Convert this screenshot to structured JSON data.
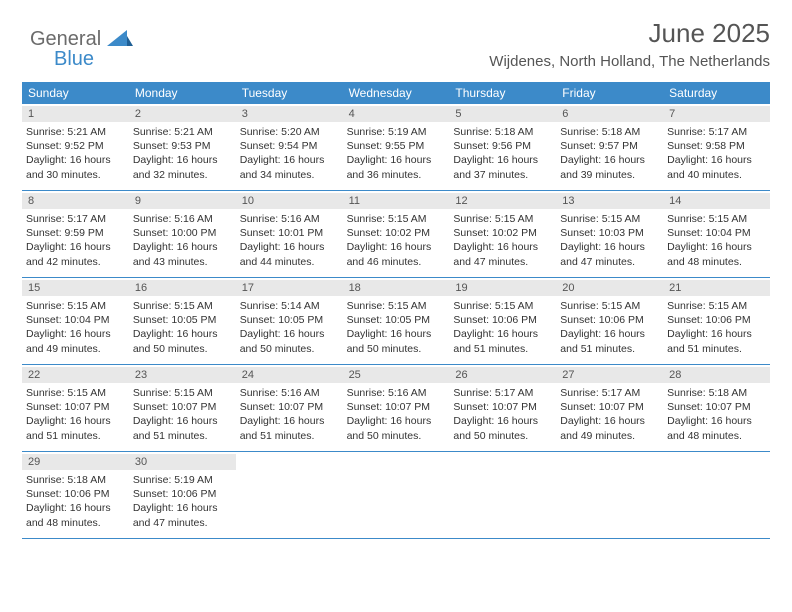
{
  "brand": {
    "general": "General",
    "blue": "Blue"
  },
  "header": {
    "title": "June 2025",
    "location": "Wijdenes, North Holland, The Netherlands"
  },
  "colors": {
    "accent": "#3c8ac9",
    "band": "#e8e8e8",
    "text": "#333333",
    "muted": "#555555",
    "white": "#ffffff"
  },
  "dayNames": [
    "Sunday",
    "Monday",
    "Tuesday",
    "Wednesday",
    "Thursday",
    "Friday",
    "Saturday"
  ],
  "weeks": [
    [
      {
        "n": "1",
        "sr": "5:21 AM",
        "ss": "9:52 PM",
        "dl": "16 hours and 30 minutes."
      },
      {
        "n": "2",
        "sr": "5:21 AM",
        "ss": "9:53 PM",
        "dl": "16 hours and 32 minutes."
      },
      {
        "n": "3",
        "sr": "5:20 AM",
        "ss": "9:54 PM",
        "dl": "16 hours and 34 minutes."
      },
      {
        "n": "4",
        "sr": "5:19 AM",
        "ss": "9:55 PM",
        "dl": "16 hours and 36 minutes."
      },
      {
        "n": "5",
        "sr": "5:18 AM",
        "ss": "9:56 PM",
        "dl": "16 hours and 37 minutes."
      },
      {
        "n": "6",
        "sr": "5:18 AM",
        "ss": "9:57 PM",
        "dl": "16 hours and 39 minutes."
      },
      {
        "n": "7",
        "sr": "5:17 AM",
        "ss": "9:58 PM",
        "dl": "16 hours and 40 minutes."
      }
    ],
    [
      {
        "n": "8",
        "sr": "5:17 AM",
        "ss": "9:59 PM",
        "dl": "16 hours and 42 minutes."
      },
      {
        "n": "9",
        "sr": "5:16 AM",
        "ss": "10:00 PM",
        "dl": "16 hours and 43 minutes."
      },
      {
        "n": "10",
        "sr": "5:16 AM",
        "ss": "10:01 PM",
        "dl": "16 hours and 44 minutes."
      },
      {
        "n": "11",
        "sr": "5:15 AM",
        "ss": "10:02 PM",
        "dl": "16 hours and 46 minutes."
      },
      {
        "n": "12",
        "sr": "5:15 AM",
        "ss": "10:02 PM",
        "dl": "16 hours and 47 minutes."
      },
      {
        "n": "13",
        "sr": "5:15 AM",
        "ss": "10:03 PM",
        "dl": "16 hours and 47 minutes."
      },
      {
        "n": "14",
        "sr": "5:15 AM",
        "ss": "10:04 PM",
        "dl": "16 hours and 48 minutes."
      }
    ],
    [
      {
        "n": "15",
        "sr": "5:15 AM",
        "ss": "10:04 PM",
        "dl": "16 hours and 49 minutes."
      },
      {
        "n": "16",
        "sr": "5:15 AM",
        "ss": "10:05 PM",
        "dl": "16 hours and 50 minutes."
      },
      {
        "n": "17",
        "sr": "5:14 AM",
        "ss": "10:05 PM",
        "dl": "16 hours and 50 minutes."
      },
      {
        "n": "18",
        "sr": "5:15 AM",
        "ss": "10:05 PM",
        "dl": "16 hours and 50 minutes."
      },
      {
        "n": "19",
        "sr": "5:15 AM",
        "ss": "10:06 PM",
        "dl": "16 hours and 51 minutes."
      },
      {
        "n": "20",
        "sr": "5:15 AM",
        "ss": "10:06 PM",
        "dl": "16 hours and 51 minutes."
      },
      {
        "n": "21",
        "sr": "5:15 AM",
        "ss": "10:06 PM",
        "dl": "16 hours and 51 minutes."
      }
    ],
    [
      {
        "n": "22",
        "sr": "5:15 AM",
        "ss": "10:07 PM",
        "dl": "16 hours and 51 minutes."
      },
      {
        "n": "23",
        "sr": "5:15 AM",
        "ss": "10:07 PM",
        "dl": "16 hours and 51 minutes."
      },
      {
        "n": "24",
        "sr": "5:16 AM",
        "ss": "10:07 PM",
        "dl": "16 hours and 51 minutes."
      },
      {
        "n": "25",
        "sr": "5:16 AM",
        "ss": "10:07 PM",
        "dl": "16 hours and 50 minutes."
      },
      {
        "n": "26",
        "sr": "5:17 AM",
        "ss": "10:07 PM",
        "dl": "16 hours and 50 minutes."
      },
      {
        "n": "27",
        "sr": "5:17 AM",
        "ss": "10:07 PM",
        "dl": "16 hours and 49 minutes."
      },
      {
        "n": "28",
        "sr": "5:18 AM",
        "ss": "10:07 PM",
        "dl": "16 hours and 48 minutes."
      }
    ],
    [
      {
        "n": "29",
        "sr": "5:18 AM",
        "ss": "10:06 PM",
        "dl": "16 hours and 48 minutes."
      },
      {
        "n": "30",
        "sr": "5:19 AM",
        "ss": "10:06 PM",
        "dl": "16 hours and 47 minutes."
      },
      null,
      null,
      null,
      null,
      null
    ]
  ],
  "labels": {
    "sunrise": "Sunrise: ",
    "sunset": "Sunset: ",
    "daylight": "Daylight: "
  }
}
